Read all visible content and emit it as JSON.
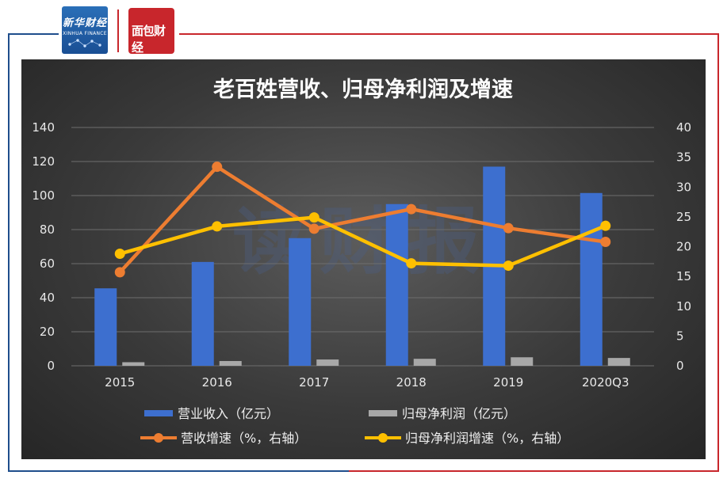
{
  "header": {
    "logo_left": {
      "name_cn": "新华财经",
      "name_en": "XINHUA FINANCE"
    },
    "logo_right": {
      "name_cn": "面包财经"
    },
    "accent_blue": "#1f4e8c",
    "accent_red": "#c8262c"
  },
  "chart_data": {
    "type": "bar+line",
    "title": "老百姓营收、归母净利润及增速",
    "categories": [
      "2015",
      "2016",
      "2017",
      "2018",
      "2019",
      "2020Q3"
    ],
    "y_left": {
      "ticks": [
        "0",
        "20",
        "40",
        "60",
        "80",
        "100",
        "120",
        "140"
      ],
      "range": [
        0,
        140
      ]
    },
    "y_right": {
      "ticks": [
        "0",
        "5",
        "10",
        "15",
        "20",
        "25",
        "30",
        "35",
        "40"
      ],
      "range": [
        0,
        40
      ]
    },
    "bar_series": [
      {
        "name": "营业收入（亿元）",
        "axis": "left",
        "color": "#3d6fcf",
        "values": [
          45.5,
          61,
          75,
          95,
          117,
          101.5
        ]
      },
      {
        "name": "归母净利润（亿元）",
        "axis": "left",
        "color": "#a8a8a8",
        "values": [
          2.1,
          2.8,
          3.7,
          4.1,
          5.0,
          4.6
        ]
      }
    ],
    "line_series": [
      {
        "name": "营收增速（%，右轴）",
        "axis": "right",
        "color": "#ed7d31",
        "values": [
          15.7,
          33.4,
          23.0,
          26.3,
          23.1,
          20.8
        ]
      },
      {
        "name": "归母净利润增速（%，右轴）",
        "axis": "right",
        "color": "#ffc000",
        "values": [
          18.8,
          23.4,
          24.9,
          17.2,
          16.8,
          23.5
        ]
      }
    ],
    "grid": true,
    "legend_position": "bottom",
    "watermark": "读财报"
  }
}
